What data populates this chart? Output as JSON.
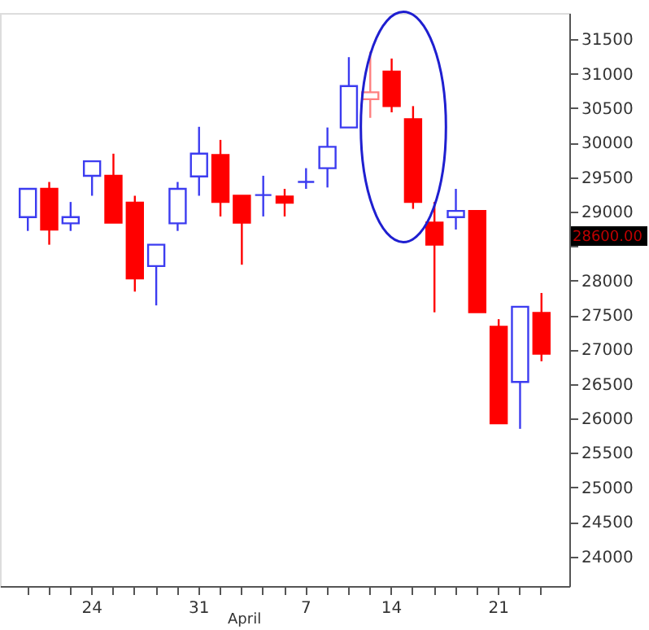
{
  "chart_data": {
    "type": "candlestick",
    "categories": [
      null,
      null,
      null,
      "24",
      null,
      null,
      null,
      null,
      "31",
      null,
      null,
      null,
      null,
      "7",
      null,
      null,
      null,
      "14",
      null,
      null,
      null,
      null,
      "21",
      null,
      null
    ],
    "ohlc": [
      [
        28920,
        29330,
        28720,
        29330
      ],
      [
        29330,
        29430,
        28520,
        28740
      ],
      [
        28830,
        29140,
        28720,
        28920
      ],
      [
        29520,
        29730,
        29230,
        29730
      ],
      [
        29520,
        29840,
        28840,
        28840
      ],
      [
        29130,
        29230,
        27840,
        28030
      ],
      [
        28210,
        28520,
        27640,
        28520
      ],
      [
        28830,
        29430,
        28720,
        29330
      ],
      [
        29510,
        30230,
        29230,
        29840
      ],
      [
        29820,
        30040,
        28930,
        29140
      ],
      [
        29230,
        29230,
        28230,
        28840
      ],
      [
        29240,
        29520,
        28930,
        29240
      ],
      [
        29220,
        29330,
        28930,
        29130
      ],
      [
        29430,
        29630,
        29330,
        29430
      ],
      [
        29630,
        30220,
        29350,
        29940
      ],
      [
        30220,
        31240,
        30220,
        30820
      ],
      [
        30630,
        31320,
        30360,
        30730
      ],
      [
        31030,
        31220,
        30440,
        30530
      ],
      [
        30340,
        30530,
        29040,
        29140
      ],
      [
        28840,
        29140,
        27540,
        28520
      ],
      [
        28920,
        29330,
        28740,
        29010
      ],
      [
        29010,
        29010,
        27540,
        27540
      ],
      [
        27330,
        27440,
        25930,
        25930
      ],
      [
        26530,
        27620,
        25850,
        27620
      ],
      [
        27530,
        27820,
        26830,
        26940
      ]
    ],
    "colors": [
      "#3c3cf0",
      "#ff0000",
      "#3c3cf0",
      "#3c3cf0",
      "#ff0000",
      "#ff0000",
      "#3c3cf0",
      "#3c3cf0",
      "#3c3cf0",
      "#ff0000",
      "#ff0000",
      "#3c3cf0",
      "#ff0000",
      "#3c3cf0",
      "#3c3cf0",
      "#3c3cf0",
      "#ff8080",
      "#ff0000",
      "#ff0000",
      "#ff0000",
      "#3c3cf0",
      "#ff0000",
      "#ff0000",
      "#3c3cf0",
      "#ff0000"
    ],
    "ylim": [
      23570,
      31880
    ],
    "yticks": [
      24000,
      24500,
      25000,
      25500,
      26000,
      26500,
      27000,
      27500,
      28000,
      {
        "value": 28500,
        "label": null
      },
      29000,
      29500,
      30000,
      30500,
      31000,
      31500
    ],
    "grid": false,
    "annotations": [
      "April",
      "28600.00"
    ]
  }
}
